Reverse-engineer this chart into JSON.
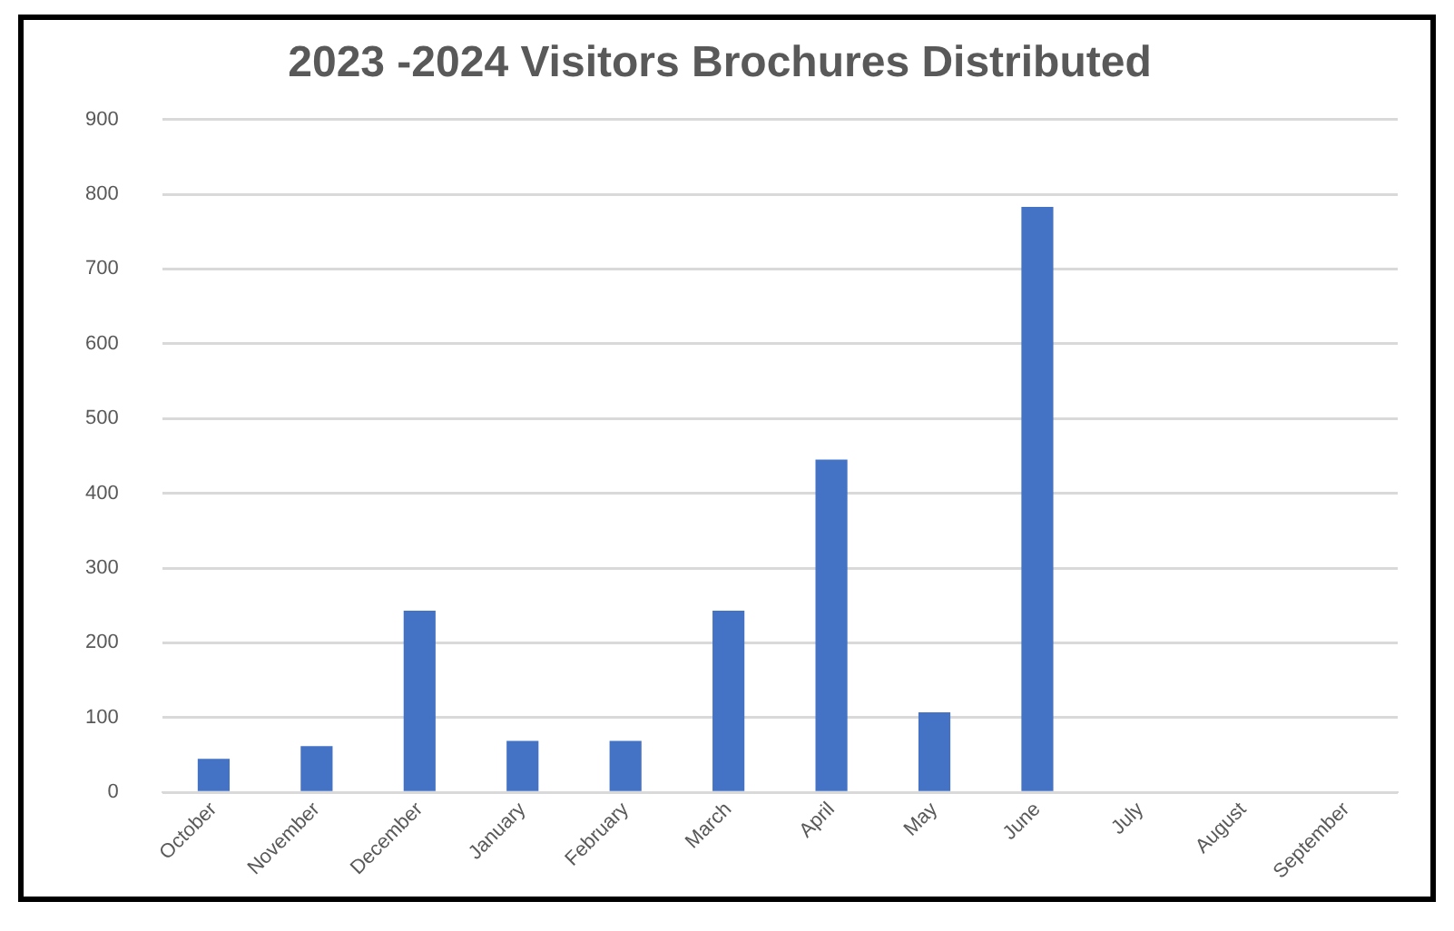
{
  "chart_data": {
    "type": "bar",
    "title": "2023 -2024 Visitors Brochures Distributed",
    "categories": [
      "October",
      "November",
      "December",
      "January",
      "February",
      "March",
      "April",
      "May",
      "June",
      "July",
      "August",
      "September"
    ],
    "values": [
      45,
      62,
      243,
      69,
      69,
      243,
      445,
      107,
      783,
      null,
      null,
      null
    ],
    "color": "#4472c4",
    "ylim": [
      0,
      900
    ],
    "yticks": [
      0,
      100,
      200,
      300,
      400,
      500,
      600,
      700,
      800,
      900
    ],
    "grid": "y",
    "legend": false
  }
}
